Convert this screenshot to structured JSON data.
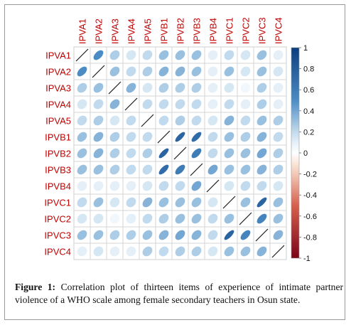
{
  "figure": {
    "caption_label": "Figure 1:",
    "caption_text": "Correlation plot of thirteen items of experience of intimate partner violence of a WHO scale among female secondary teachers in Osun state."
  },
  "colors": {
    "positive_strong": "#0b3d7e",
    "positive_mid": "#4b8cc4",
    "positive_light": "#d6e7f4",
    "neutral": "#ffffff",
    "negative_light": "#f8d9c8",
    "negative_strong": "#7a0418",
    "label_red": "#c00000"
  },
  "chart_data": {
    "type": "heatmap",
    "glyph": "ellipse",
    "variables": [
      "IPVA1",
      "IPVA2",
      "IPVA3",
      "IPVA4",
      "IPVA5",
      "IPVB1",
      "IPVB2",
      "IPVB3",
      "IPVB4",
      "IPVC1",
      "IPVC2",
      "IPVC3",
      "IPVC4"
    ],
    "colorbar": {
      "min": -1,
      "max": 1,
      "ticks": [
        "1",
        "0.8",
        "0.6",
        "0.4",
        "0.2",
        "0",
        "-0.2",
        "-0.4",
        "-0.6",
        "-0.8",
        "-1"
      ]
    },
    "matrix": [
      [
        1.0,
        0.5,
        0.25,
        0.15,
        0.2,
        0.3,
        0.3,
        0.3,
        0.1,
        0.2,
        0.15,
        0.3,
        0.1
      ],
      [
        0.5,
        1.0,
        0.3,
        0.2,
        0.25,
        0.35,
        0.35,
        0.3,
        0.1,
        0.3,
        0.15,
        0.3,
        0.15
      ],
      [
        0.25,
        0.3,
        1.0,
        0.35,
        0.15,
        0.25,
        0.25,
        0.25,
        0.1,
        0.15,
        0.05,
        0.25,
        0.1
      ],
      [
        0.15,
        0.2,
        0.35,
        1.0,
        0.2,
        0.2,
        0.2,
        0.2,
        0.1,
        0.2,
        0.1,
        0.25,
        0.1
      ],
      [
        0.2,
        0.25,
        0.15,
        0.2,
        1.0,
        0.2,
        0.25,
        0.2,
        0.15,
        0.35,
        0.2,
        0.3,
        0.25
      ],
      [
        0.3,
        0.35,
        0.25,
        0.2,
        0.2,
        1.0,
        0.75,
        0.7,
        0.2,
        0.3,
        0.25,
        0.35,
        0.2
      ],
      [
        0.3,
        0.35,
        0.25,
        0.2,
        0.25,
        0.75,
        1.0,
        0.6,
        0.2,
        0.3,
        0.3,
        0.4,
        0.25
      ],
      [
        0.3,
        0.3,
        0.25,
        0.2,
        0.2,
        0.7,
        0.6,
        1.0,
        0.4,
        0.3,
        0.3,
        0.35,
        0.25
      ],
      [
        0.1,
        0.1,
        0.1,
        0.1,
        0.15,
        0.2,
        0.2,
        0.4,
        1.0,
        0.15,
        0.2,
        0.2,
        0.15
      ],
      [
        0.2,
        0.3,
        0.15,
        0.2,
        0.35,
        0.3,
        0.3,
        0.3,
        0.15,
        1.0,
        0.3,
        0.75,
        0.3
      ],
      [
        0.15,
        0.15,
        0.05,
        0.1,
        0.2,
        0.25,
        0.3,
        0.3,
        0.2,
        0.3,
        1.0,
        0.55,
        0.3
      ],
      [
        0.3,
        0.3,
        0.25,
        0.25,
        0.3,
        0.35,
        0.4,
        0.35,
        0.2,
        0.75,
        0.55,
        1.0,
        0.35
      ],
      [
        0.1,
        0.15,
        0.1,
        0.1,
        0.25,
        0.2,
        0.25,
        0.25,
        0.15,
        0.3,
        0.3,
        0.35,
        1.0
      ]
    ]
  }
}
